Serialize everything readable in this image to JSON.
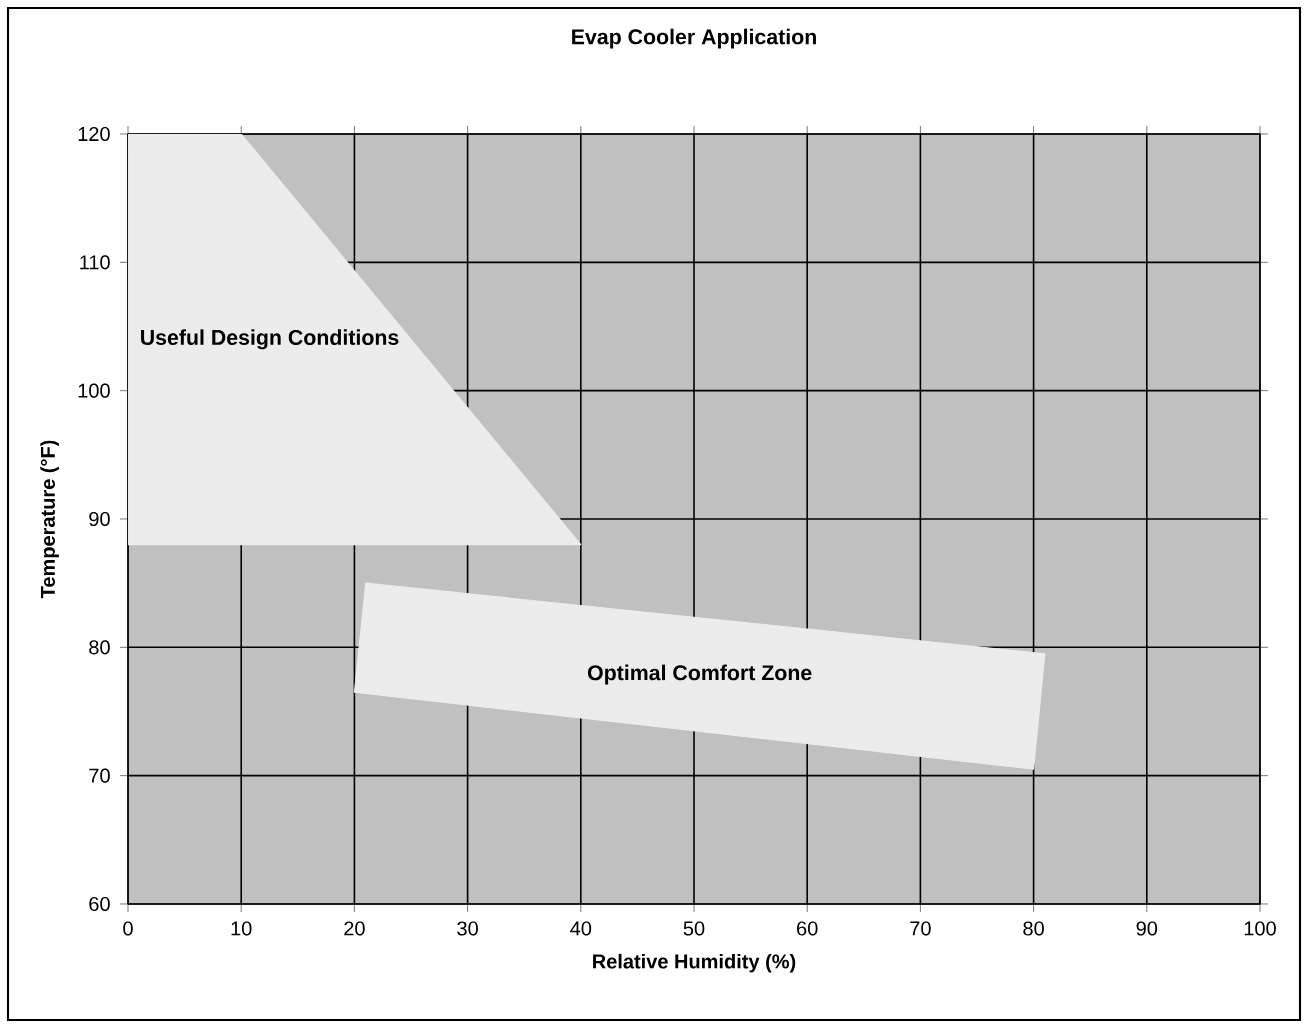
{
  "chart_data": {
    "type": "area",
    "title": "Evap Cooler Application",
    "xlabel": "Relative Humidity (%)",
    "ylabel": "Temperature (°F)",
    "series": [
      {
        "color": "#ececec",
        "x": [
          0,
          10,
          40,
          0,
          0
        ],
        "values": [
          120,
          120,
          88,
          88,
          120
        ]
      },
      {
        "color": "#ececec",
        "x": [
          21,
          81,
          80,
          20,
          21
        ],
        "values": [
          85,
          79.5,
          70.5,
          76.5,
          85
        ]
      }
    ],
    "annotations": [
      "Useful Design Conditions",
      "Optimal Comfort Zone"
    ],
    "xlim": [
      0,
      100
    ],
    "ylim": [
      60,
      120
    ],
    "xticks": [
      0,
      10,
      20,
      30,
      40,
      50,
      60,
      70,
      80,
      90,
      100
    ],
    "yticks": [
      60,
      70,
      80,
      90,
      100,
      110,
      120
    ],
    "grid": true
  }
}
